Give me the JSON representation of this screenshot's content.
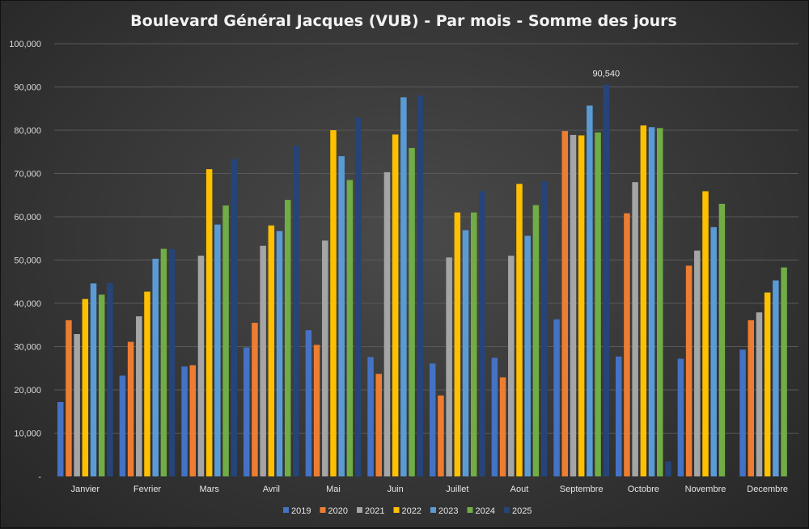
{
  "chart_data": {
    "type": "bar",
    "title": "Boulevard Général Jacques (VUB) - Par mois - Somme des jours",
    "categories": [
      "Janvier",
      "Fevrier",
      "Mars",
      "Avril",
      "Mai",
      "Juin",
      "Juillet",
      "Aout",
      "Septembre",
      "Octobre",
      "Novembre",
      "Decembre"
    ],
    "ylim": [
      0,
      100000
    ],
    "yticks": [
      "-",
      "10,000",
      "20,000",
      "30,000",
      "40,000",
      "50,000",
      "60,000",
      "70,000",
      "80,000",
      "90,000",
      "100,000"
    ],
    "grid": true,
    "legend_position": "bottom",
    "series": [
      {
        "name": "2019",
        "color": "#4472c4",
        "values": [
          17200,
          23300,
          25400,
          29800,
          33800,
          27600,
          26100,
          27400,
          36300,
          27700,
          27200,
          29300
        ]
      },
      {
        "name": "2020",
        "color": "#ed7d31",
        "values": [
          36100,
          31100,
          25700,
          35500,
          30400,
          23700,
          18700,
          22900,
          79800,
          60800,
          48700,
          36100
        ]
      },
      {
        "name": "2021",
        "color": "#a5a5a5",
        "values": [
          32900,
          37000,
          51000,
          53300,
          54500,
          70300,
          50600,
          51000,
          78900,
          68000,
          52200,
          37900
        ]
      },
      {
        "name": "2022",
        "color": "#ffc000",
        "values": [
          41000,
          42700,
          71000,
          58000,
          80000,
          79000,
          61000,
          67600,
          78800,
          81100,
          65900,
          42500
        ]
      },
      {
        "name": "2023",
        "color": "#5b9bd5",
        "values": [
          44600,
          50300,
          58200,
          56700,
          74000,
          87600,
          56900,
          55600,
          85700,
          80700,
          57600,
          45300
        ]
      },
      {
        "name": "2024",
        "color": "#70ad47",
        "values": [
          42000,
          52600,
          62600,
          63900,
          68500,
          75900,
          61000,
          62700,
          79500,
          80500,
          63000,
          48300
        ]
      },
      {
        "name": "2025",
        "color": "#264478",
        "values": [
          44700,
          52500,
          73300,
          76400,
          82900,
          88000,
          65900,
          68200,
          90540,
          3500,
          null,
          null
        ]
      }
    ],
    "data_labels": [
      {
        "series": "2025",
        "category": "Septembre",
        "text": "90,540"
      }
    ]
  }
}
